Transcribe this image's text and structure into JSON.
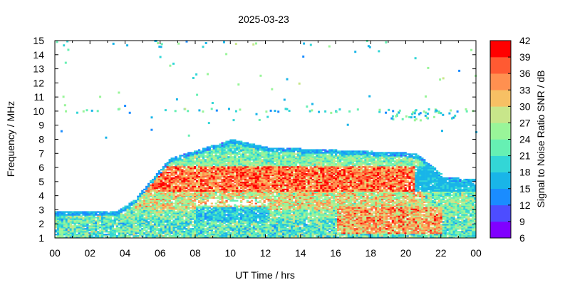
{
  "chart_data": {
    "type": "heatmap",
    "title": "2025-03-23",
    "xlabel": "UT Time / hrs",
    "ylabel": "Frequency / MHz",
    "colorbar_label": "Signal to Noise Ratio SNR / dB",
    "xlim": [
      0,
      24
    ],
    "ylim": [
      1,
      15
    ],
    "x_ticks": [
      "00",
      "02",
      "04",
      "06",
      "08",
      "10",
      "12",
      "14",
      "16",
      "18",
      "20",
      "22",
      "00"
    ],
    "y_ticks": [
      1,
      2,
      3,
      4,
      5,
      6,
      7,
      8,
      9,
      10,
      11,
      12,
      13,
      14,
      15
    ],
    "colorbar_ticks": [
      6,
      9,
      12,
      15,
      18,
      21,
      24,
      27,
      30,
      33,
      36,
      39,
      42
    ],
    "colorbar_range": [
      6,
      42
    ],
    "colorbar_colors": [
      "#8000ff",
      "#4d4dff",
      "#1a8cff",
      "#19b5e8",
      "#33d6d6",
      "#66f0b3",
      "#99f599",
      "#c8e68a",
      "#f7c064",
      "#ff9050",
      "#ff5a32",
      "#ff0000"
    ],
    "notes": "Ionogram-style SNR heat map: dense band between ~1 and ~8 MHz peaking near 10 UT, strongest (red, 33-42 dB) between ~4.3 and ~6 MHz from ~05 to ~20 UT; sparse low-SNR points up to 15 MHz."
  }
}
